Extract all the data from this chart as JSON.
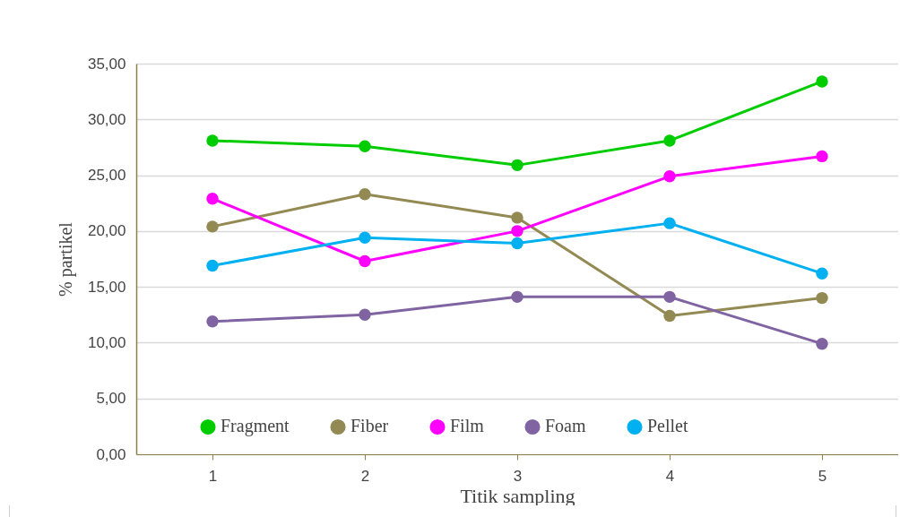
{
  "chart_data": {
    "type": "line",
    "xlabel": "Titik sampling",
    "ylabel": "% partikel",
    "categories": [
      "1",
      "2",
      "3",
      "4",
      "5"
    ],
    "series": [
      {
        "name": "Fragment",
        "color": "#00cc00",
        "values": [
          28.1,
          27.6,
          25.9,
          28.1,
          33.4
        ]
      },
      {
        "name": "Fiber",
        "color": "#938953",
        "values": [
          20.4,
          23.3,
          21.2,
          12.4,
          14.0
        ]
      },
      {
        "name": "Film",
        "color": "#ff00ff",
        "values": [
          22.9,
          17.3,
          20.0,
          24.9,
          26.7
        ]
      },
      {
        "name": "Foam",
        "color": "#8064a2",
        "values": [
          11.9,
          12.5,
          14.1,
          14.1,
          9.9
        ]
      },
      {
        "name": "Pellet",
        "color": "#00b0f0",
        "values": [
          16.9,
          19.4,
          18.9,
          20.7,
          16.2
        ]
      }
    ],
    "ylim": [
      0,
      35
    ],
    "yticks": [
      {
        "value": 0,
        "label": "0,00"
      },
      {
        "value": 5,
        "label": "5,00"
      },
      {
        "value": 10,
        "label": "10,00"
      },
      {
        "value": 15,
        "label": "15,00"
      },
      {
        "value": 20,
        "label": "20,00"
      },
      {
        "value": 25,
        "label": "25,00"
      },
      {
        "value": 30,
        "label": "30,00"
      },
      {
        "value": 35,
        "label": "35,00"
      }
    ],
    "grid": "y",
    "legend": "bottom",
    "marker": "circle",
    "line_style": "solid"
  }
}
